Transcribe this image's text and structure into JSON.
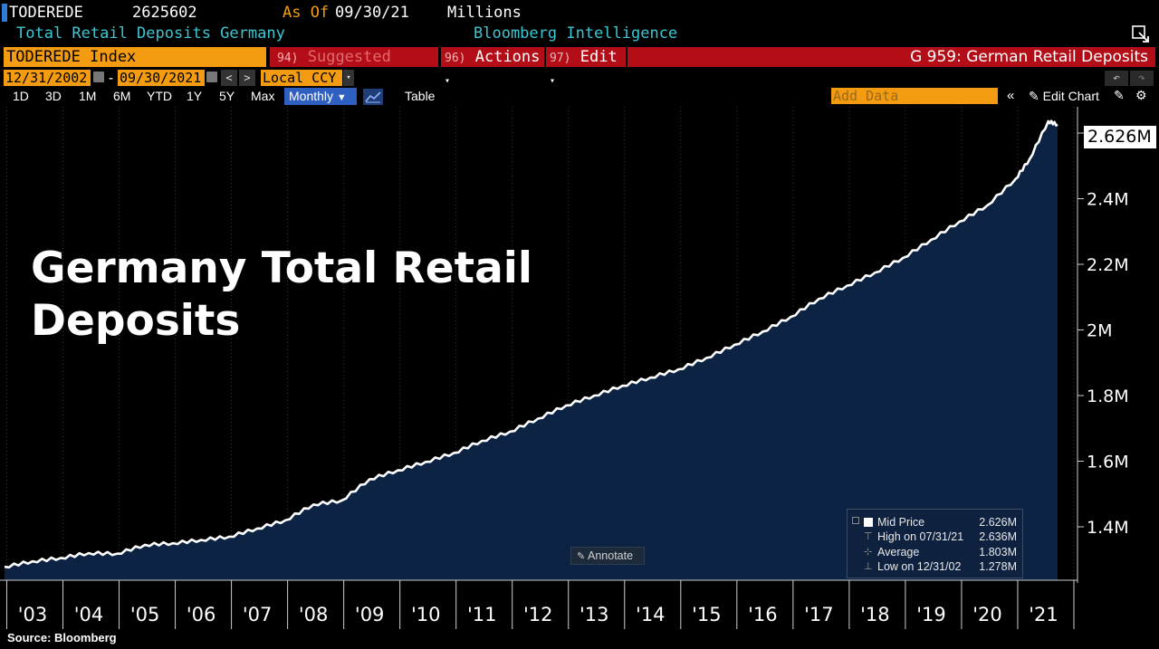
{
  "header": {
    "ticker": "TODEREDE",
    "value": "2625602",
    "as_of_label": "As Of",
    "as_of_date": "09/30/21",
    "units": "Millions",
    "description": "Total Retail Deposits Germany",
    "provider": "Bloomberg Intelligence"
  },
  "toolbar": {
    "security": "TODEREDE Index",
    "suggested_num": "94)",
    "suggested_label": "Suggested Charts",
    "actions_num": "96)",
    "actions_label": "Actions",
    "edit_num": "97)",
    "edit_label": "Edit",
    "chart_id": "G 959: German Retail Deposits"
  },
  "date_range": {
    "start": "12/31/2002",
    "separator": "-",
    "end": "09/30/2021",
    "currency": "Local CCY"
  },
  "range_buttons": [
    "1D",
    "3D",
    "1M",
    "6M",
    "YTD",
    "1Y",
    "5Y",
    "Max"
  ],
  "periodicity": "Monthly",
  "table_label": "Table",
  "add_data_placeholder": "Add Data",
  "edit_chart_label": "Edit Chart",
  "overlay_title": "Germany Total Retail Deposits",
  "overlay_title_line1": "Germany Total Retail",
  "overlay_title_line2": "Deposits",
  "last_value_label": "2.626M",
  "legend": {
    "mid_label": "Mid Price",
    "mid_value": "2.626M",
    "high_label": "High on 07/31/21",
    "high_value": "2.636M",
    "avg_label": "Average",
    "avg_value": "1.803M",
    "low_label": "Low on 12/31/02",
    "low_value": "1.278M"
  },
  "annotate_label": "Annotate",
  "source": "Source: Bloomberg",
  "colors": {
    "background": "#000000",
    "area_fill": "#0c2344",
    "line": "#ffffff",
    "orange": "#f39c12",
    "red_bar": "#b30e18",
    "cyan_text": "#3bc6d3",
    "as_of_orange": "#f39c12"
  },
  "chart_data": {
    "type": "area",
    "x": [
      "2002-12",
      "2003-06",
      "2003-12",
      "2004-06",
      "2004-12",
      "2005-06",
      "2005-12",
      "2006-06",
      "2006-12",
      "2007-06",
      "2007-12",
      "2008-06",
      "2008-12",
      "2009-06",
      "2009-12",
      "2010-06",
      "2010-12",
      "2011-06",
      "2011-12",
      "2012-06",
      "2012-12",
      "2013-06",
      "2013-12",
      "2014-06",
      "2014-12",
      "2015-06",
      "2015-12",
      "2016-06",
      "2016-12",
      "2017-06",
      "2017-12",
      "2018-06",
      "2018-12",
      "2019-06",
      "2019-12",
      "2020-06",
      "2020-12",
      "2021-03",
      "2021-07",
      "2021-09"
    ],
    "values": [
      1.278,
      1.295,
      1.305,
      1.32,
      1.318,
      1.345,
      1.35,
      1.36,
      1.37,
      1.395,
      1.42,
      1.468,
      1.48,
      1.545,
      1.572,
      1.598,
      1.625,
      1.662,
      1.69,
      1.73,
      1.77,
      1.8,
      1.83,
      1.855,
      1.88,
      1.915,
      1.955,
      1.995,
      2.04,
      2.095,
      2.135,
      2.175,
      2.22,
      2.275,
      2.33,
      2.38,
      2.46,
      2.52,
      2.636,
      2.626
    ],
    "unit": "M",
    "ylim": [
      1.24,
      2.68
    ],
    "y_ticks": [
      1.4,
      1.6,
      1.8,
      2.0,
      2.2,
      2.4,
      2.6
    ],
    "y_tick_labels": [
      "1.4M",
      "1.6M",
      "1.8M",
      "2M",
      "2.2M",
      "2.4M",
      "2.6M"
    ],
    "x_tick_labels": [
      "'03",
      "'04",
      "'05",
      "'06",
      "'07",
      "'08",
      "'09",
      "'10",
      "'11",
      "'12",
      "'13",
      "'14",
      "'15",
      "'16",
      "'17",
      "'18",
      "'19",
      "'20",
      "'21"
    ],
    "x_tick_years": [
      2003,
      2004,
      2005,
      2006,
      2007,
      2008,
      2009,
      2010,
      2011,
      2012,
      2013,
      2014,
      2015,
      2016,
      2017,
      2018,
      2019,
      2020,
      2021
    ],
    "grid": true,
    "grid_style": "dotted vertical at year boundaries"
  }
}
